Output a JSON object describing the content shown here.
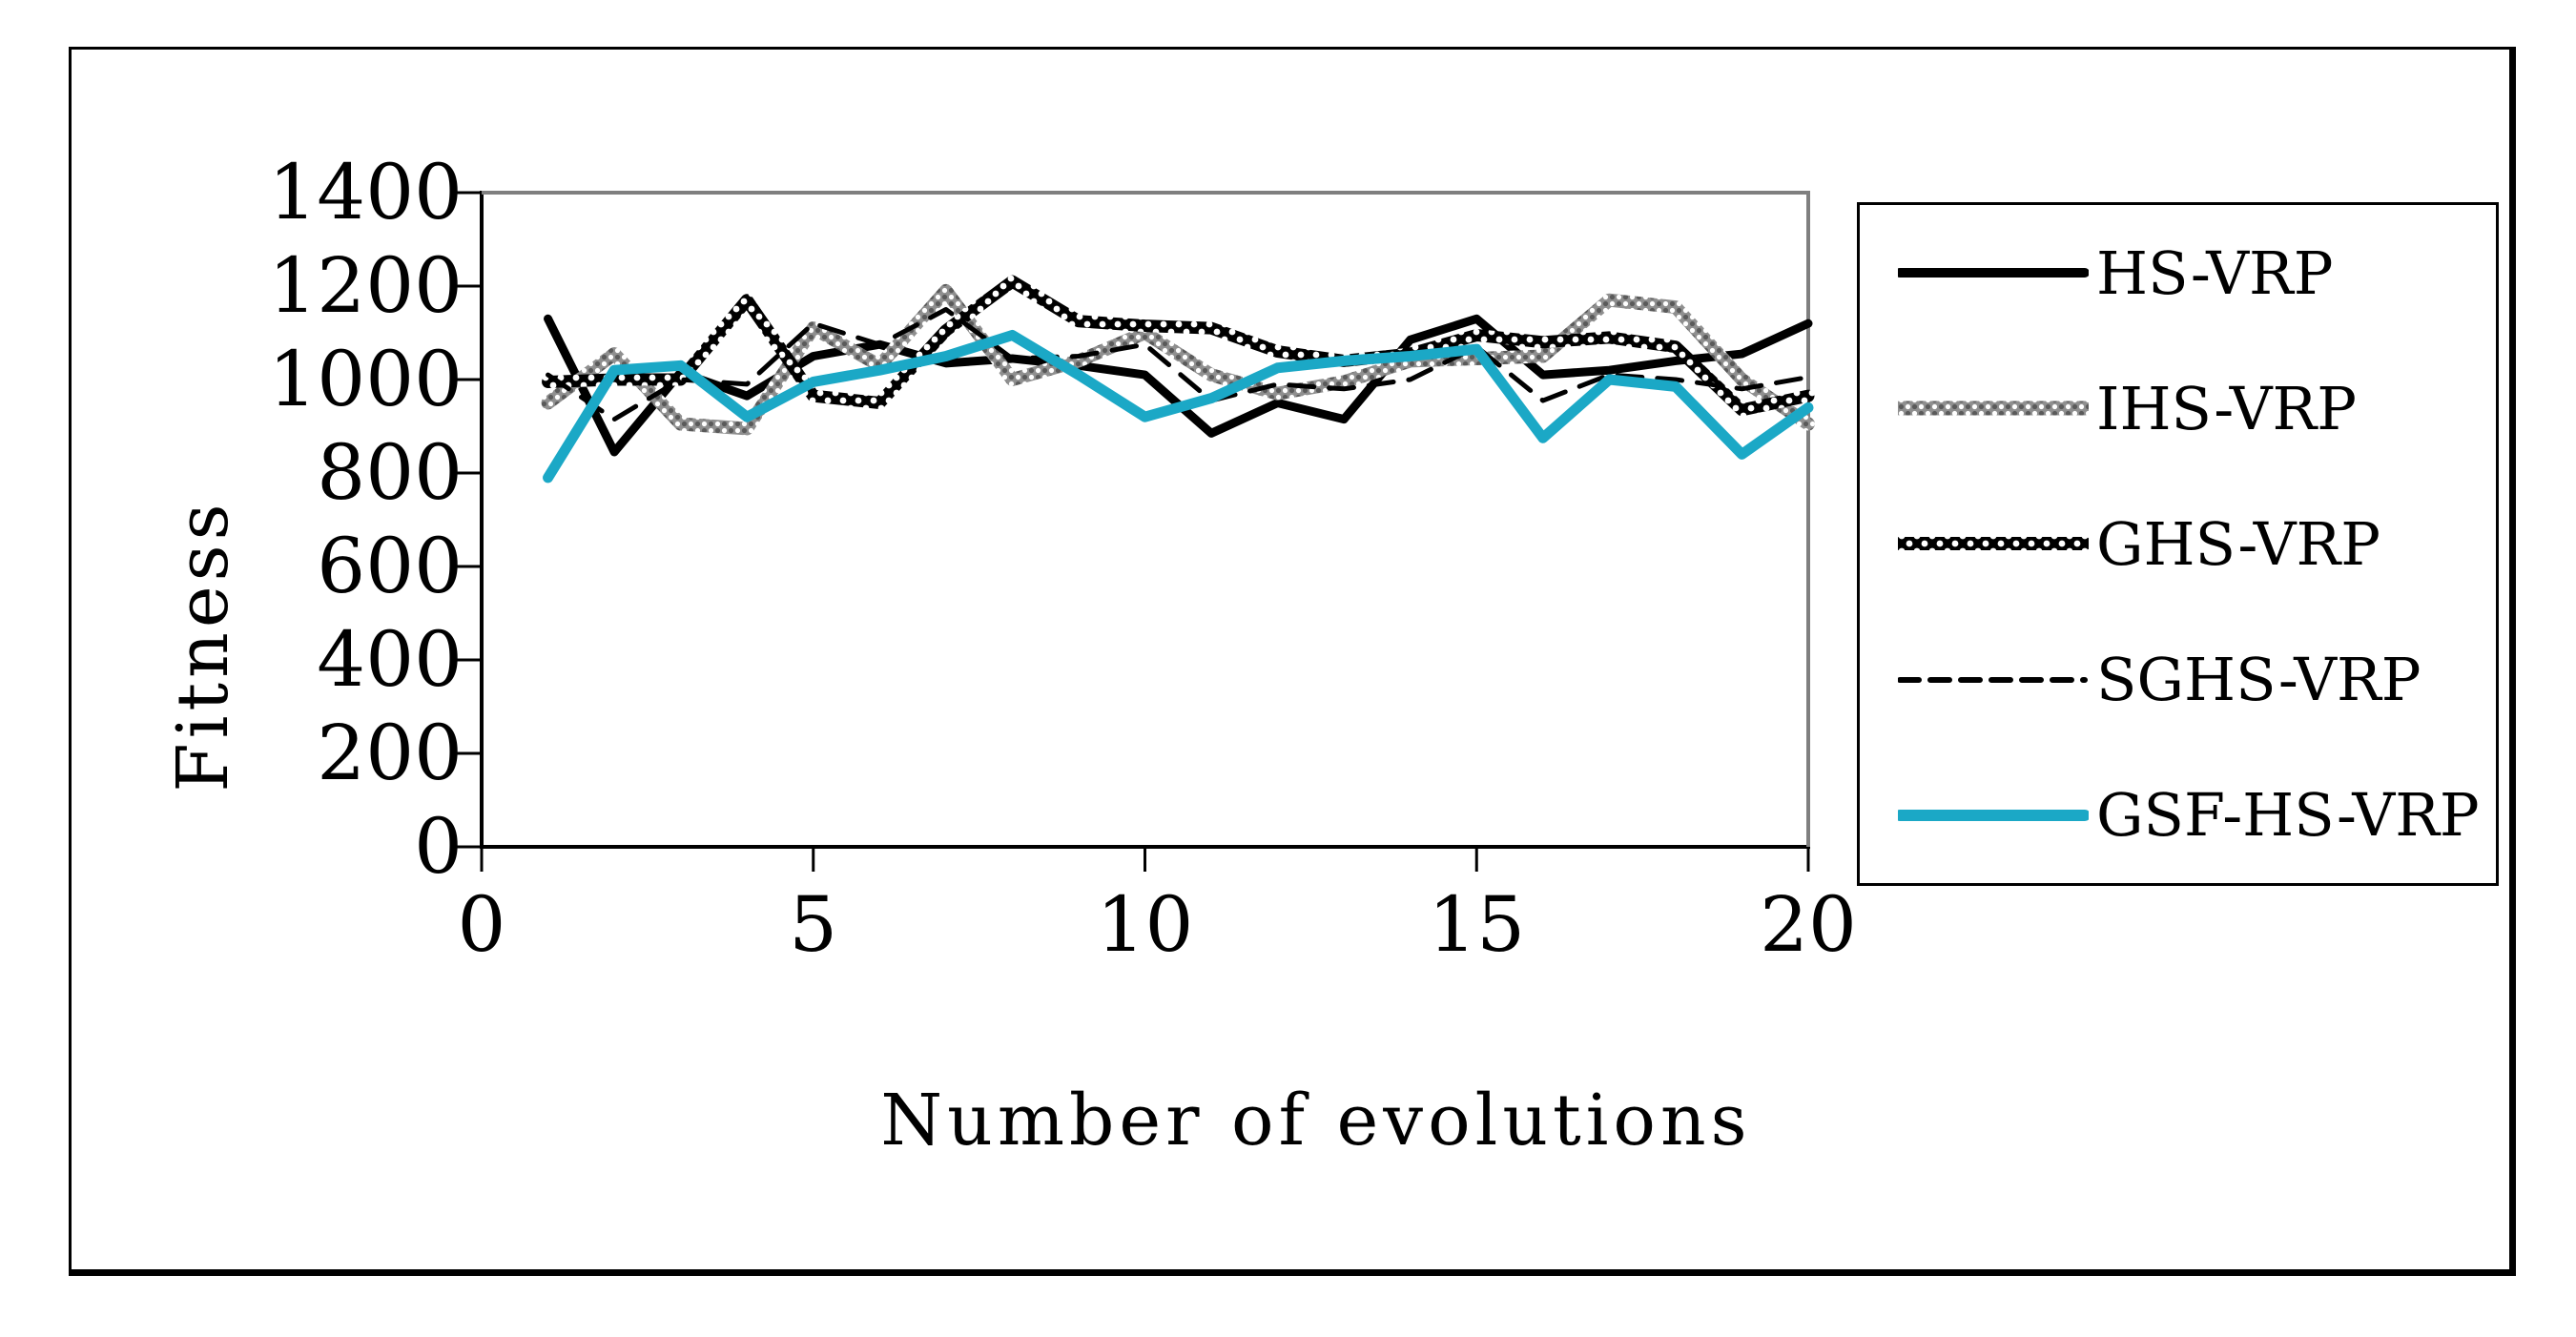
{
  "chart_data": {
    "type": "line",
    "title": "",
    "xlabel": "Number of evolutions",
    "ylabel": "Fitness",
    "x": [
      1,
      2,
      3,
      4,
      5,
      6,
      7,
      8,
      9,
      10,
      11,
      12,
      13,
      14,
      15,
      16,
      17,
      18,
      19,
      20
    ],
    "xlim": [
      0,
      20
    ],
    "ylim": [
      0,
      1400
    ],
    "x_ticks": [
      0,
      5,
      10,
      15,
      20
    ],
    "y_ticks": [
      0,
      200,
      400,
      600,
      800,
      1000,
      1200,
      1400
    ],
    "grid": "off",
    "legend_position": "right",
    "series": [
      {
        "name": "HS-VRP",
        "style": "solid-black",
        "values": [
          1130,
          845,
          1015,
          965,
          1050,
          1075,
          1035,
          1045,
          1030,
          1010,
          885,
          950,
          915,
          1085,
          1130,
          1010,
          1020,
          1040,
          1055,
          1120
        ]
      },
      {
        "name": "IHS-VRP",
        "style": "gray-texture",
        "values": [
          950,
          1055,
          905,
          895,
          1110,
          1030,
          1190,
          1000,
          1040,
          1100,
          1010,
          970,
          995,
          1040,
          1045,
          1050,
          1170,
          1155,
          1000,
          905
        ]
      },
      {
        "name": "GHS-VRP",
        "style": "black-dot-texture",
        "values": [
          995,
          1000,
          1000,
          1170,
          965,
          950,
          1105,
          1210,
          1125,
          1115,
          1110,
          1060,
          1040,
          1055,
          1095,
          1080,
          1090,
          1070,
          935,
          965
        ]
      },
      {
        "name": "SGHS-VRP",
        "style": "dashed-black",
        "values": [
          1010,
          915,
          1000,
          990,
          1120,
          1075,
          1150,
          1045,
          1050,
          1075,
          955,
          990,
          980,
          1000,
          1070,
          955,
          1010,
          1000,
          980,
          1005
        ]
      },
      {
        "name": "GSF-HS-VRP",
        "style": "solid-cyan",
        "values": [
          790,
          1020,
          1030,
          920,
          995,
          1020,
          1050,
          1095,
          1010,
          920,
          960,
          1025,
          1040,
          1050,
          1065,
          875,
          1000,
          985,
          840,
          940
        ]
      }
    ],
    "colors": {
      "black": "#000000",
      "accent_cyan": "#1BA8C6",
      "texture_gray": "#8f8f8f",
      "plot_border_gray": "#7f7f7f"
    }
  }
}
